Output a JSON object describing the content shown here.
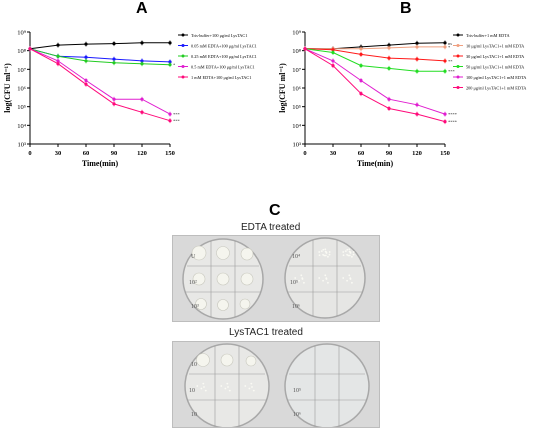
{
  "panel_labels": {
    "a": "A",
    "b": "B",
    "c": "C"
  },
  "photo_captions": {
    "top": "EDTA treated",
    "bottom": "LysTAC1 treated"
  },
  "plate_marks": {
    "top_left": [
      "U",
      "10²",
      "10³"
    ],
    "top_right": [
      "10⁴",
      "10⁵",
      "10⁶"
    ],
    "bottom_left": [
      "10",
      "10",
      "10"
    ],
    "bottom_right": [
      "10⁵",
      "10⁶"
    ]
  },
  "chart_data": [
    {
      "type": "line",
      "panel": "A",
      "xlabel": "Time(min)",
      "ylabel": "log(CFU ml⁻¹)",
      "x": [
        0,
        30,
        60,
        90,
        120,
        150
      ],
      "xlim": [
        0,
        150
      ],
      "xticks": [
        "0",
        "30",
        "60",
        "90",
        "120",
        "150"
      ],
      "ylim": [
        3,
        9
      ],
      "yticks": [
        "10³",
        "10⁴",
        "10⁵",
        "10⁶",
        "10⁷",
        "10⁸",
        "10⁹"
      ],
      "series": [
        {
          "name": "Tris-buffer+100 μg/ml LysTAC1",
          "color": "#000000",
          "values": [
            8.1,
            8.3,
            8.35,
            8.38,
            8.42,
            8.42
          ],
          "sig": ""
        },
        {
          "name": "0.05 mM EDTA+100 μg/ml LysTAC1",
          "color": "#1a1aff",
          "values": [
            8.1,
            7.7,
            7.65,
            7.55,
            7.45,
            7.4
          ],
          "sig": ""
        },
        {
          "name": "0.25 mM EDTA+100 μg/ml LysTAC1",
          "color": "#22cc22",
          "values": [
            8.1,
            7.7,
            7.45,
            7.35,
            7.3,
            7.25
          ],
          "sig": "*"
        },
        {
          "name": "0.5 mM EDTA+100 μg/ml LysTAC1",
          "color": "#e01ed0",
          "values": [
            8.1,
            7.45,
            6.4,
            5.4,
            5.4,
            4.6
          ],
          "sig": "***"
        },
        {
          "name": "1 mM EDTA+100 μg/ml LysTAC1",
          "color": "#ff0a7a",
          "values": [
            8.1,
            7.3,
            6.2,
            5.15,
            4.7,
            4.25
          ],
          "sig": "***"
        }
      ],
      "grid": false,
      "legend_position": "right"
    },
    {
      "type": "line",
      "panel": "B",
      "xlabel": "Time(min)",
      "ylabel": "log(CFU ml⁻¹)",
      "x": [
        0,
        30,
        60,
        90,
        120,
        150
      ],
      "xlim": [
        0,
        150
      ],
      "xticks": [
        "0",
        "30",
        "60",
        "90",
        "120",
        "150"
      ],
      "ylim": [
        3,
        9
      ],
      "yticks": [
        "10³",
        "10⁴",
        "10⁵",
        "10⁶",
        "10⁷",
        "10⁸",
        "10⁹"
      ],
      "series": [
        {
          "name": "Tris-buffer+1 mM EDTA",
          "color": "#000000",
          "values": [
            8.1,
            8.1,
            8.2,
            8.3,
            8.4,
            8.42
          ],
          "sig": "ns"
        },
        {
          "name": "10 μg/ml LysTAC1+1 mM EDTA",
          "color": "#f0a080",
          "values": [
            8.1,
            8.1,
            8.1,
            8.15,
            8.2,
            8.2
          ],
          "sig": "*"
        },
        {
          "name": "30 μg/ml LysTAC1+1 mM EDTA",
          "color": "#ff1a1a",
          "values": [
            8.1,
            8.05,
            7.8,
            7.6,
            7.55,
            7.45
          ],
          "sig": "**"
        },
        {
          "name": "50 μg/ml LysTAC1+1 mM EDTA",
          "color": "#22dd22",
          "values": [
            8.1,
            7.9,
            7.2,
            7.05,
            6.9,
            6.9
          ],
          "sig": "***"
        },
        {
          "name": "100 μg/ml LysTAC1+1 mM EDTA",
          "color": "#e01ed0",
          "values": [
            8.1,
            7.45,
            6.4,
            5.4,
            5.1,
            4.6
          ],
          "sig": "****"
        },
        {
          "name": "200 μg/ml LysTAC1+1 mM EDTA",
          "color": "#ff0a7a",
          "values": [
            8.1,
            7.2,
            5.7,
            4.9,
            4.6,
            4.2
          ],
          "sig": "****"
        }
      ],
      "grid": false,
      "legend_position": "right"
    }
  ]
}
